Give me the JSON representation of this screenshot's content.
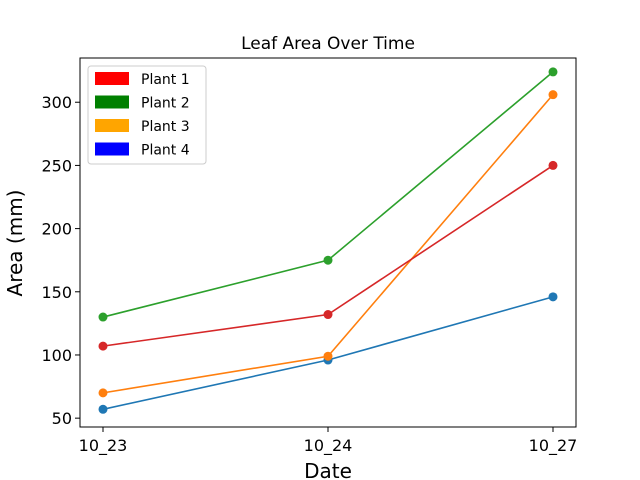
{
  "chart_data": {
    "type": "line",
    "title": "Leaf Area Over Time",
    "xlabel": "Date",
    "ylabel": "Area (mm)",
    "categories": [
      "10_23",
      "10_24",
      "10_27"
    ],
    "ylim": [
      43,
      335
    ],
    "yticks": [
      50,
      100,
      150,
      200,
      250,
      300
    ],
    "grid": false,
    "legend_position": "top-left",
    "series": [
      {
        "color": "#1f77b4",
        "values": [
          57,
          96,
          146
        ]
      },
      {
        "color": "#ff7f0e",
        "values": [
          70,
          99,
          306
        ]
      },
      {
        "color": "#2ca02c",
        "values": [
          130,
          175,
          324
        ]
      },
      {
        "color": "#d62728",
        "values": [
          107,
          132,
          250
        ]
      }
    ],
    "legend": [
      {
        "label": "Plant 1",
        "color": "#ff0000"
      },
      {
        "label": "Plant 2",
        "color": "#008000"
      },
      {
        "label": "Plant 3",
        "color": "#ffa500"
      },
      {
        "label": "Plant 4",
        "color": "#0000ff"
      }
    ]
  }
}
